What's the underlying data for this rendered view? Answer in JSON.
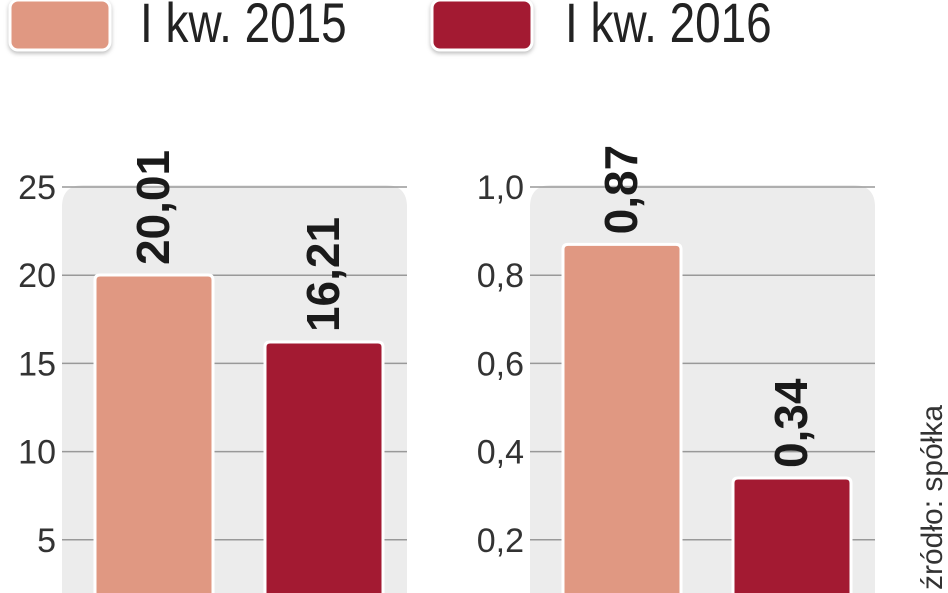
{
  "legend": [
    {
      "label": "I kw. 2015",
      "color": "#e09882"
    },
    {
      "label": "I kw. 2016",
      "color": "#a31a32"
    }
  ],
  "source": "źródło: spółka",
  "chart_data": [
    {
      "type": "bar",
      "categories": [
        "I kw. 2015",
        "I kw. 2016"
      ],
      "values": [
        20.01,
        16.21
      ],
      "value_labels": [
        "20,01",
        "16,21"
      ],
      "yticks": [
        "5",
        "10",
        "15",
        "20",
        "25"
      ],
      "ytick_values": [
        5,
        10,
        15,
        20,
        25
      ],
      "ylim": [
        0,
        25
      ],
      "grid": true
    },
    {
      "type": "bar",
      "categories": [
        "I kw. 2015",
        "I kw. 2016"
      ],
      "values": [
        0.87,
        0.34
      ],
      "value_labels": [
        "0,87",
        "0,34"
      ],
      "yticks": [
        "0,2",
        "0,4",
        "0,6",
        "0,8",
        "1,0"
      ],
      "ytick_values": [
        0.2,
        0.4,
        0.6,
        0.8,
        1.0
      ],
      "ylim": [
        0,
        1.0
      ],
      "grid": true
    }
  ]
}
